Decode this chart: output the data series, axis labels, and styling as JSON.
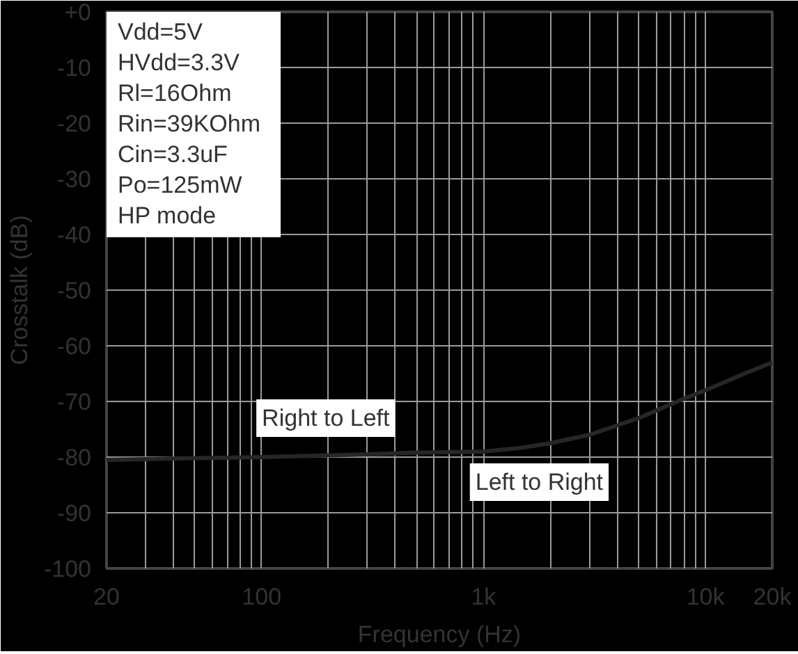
{
  "chart_data": {
    "type": "line",
    "xlabel": "Frequency (Hz)",
    "ylabel": "Crosstalk (dB)",
    "log": "x",
    "x": [
      20,
      50,
      100,
      200,
      300,
      500,
      1000,
      1500,
      2000,
      3000,
      5000,
      8000,
      10000,
      15000,
      20000
    ],
    "series": [
      {
        "color": "#262626",
        "values": [
          -80.5,
          -80.2,
          -80,
          -79.7,
          -79.5,
          -79.2,
          -79,
          -78.3,
          -77.5,
          -76,
          -73,
          -69.5,
          -68,
          -65,
          -63
        ]
      }
    ],
    "xlim": [
      20,
      20000
    ],
    "ylim": [
      -100,
      0
    ],
    "xticks": [
      {
        "value": 20,
        "label": "20"
      },
      {
        "value": 30,
        "label": null
      },
      {
        "value": 40,
        "label": null
      },
      {
        "value": 50,
        "label": null
      },
      {
        "value": 60,
        "label": null
      },
      {
        "value": 70,
        "label": null
      },
      {
        "value": 80,
        "label": null
      },
      {
        "value": 90,
        "label": null
      },
      {
        "value": 100,
        "label": "100"
      },
      {
        "value": 200,
        "label": null
      },
      {
        "value": 300,
        "label": null
      },
      {
        "value": 400,
        "label": null
      },
      {
        "value": 500,
        "label": null
      },
      {
        "value": 600,
        "label": null
      },
      {
        "value": 700,
        "label": null
      },
      {
        "value": 800,
        "label": null
      },
      {
        "value": 900,
        "label": null
      },
      {
        "value": 1000,
        "label": "1k"
      },
      {
        "value": 2000,
        "label": null
      },
      {
        "value": 3000,
        "label": null
      },
      {
        "value": 4000,
        "label": null
      },
      {
        "value": 5000,
        "label": null
      },
      {
        "value": 6000,
        "label": null
      },
      {
        "value": 7000,
        "label": null
      },
      {
        "value": 8000,
        "label": null
      },
      {
        "value": 9000,
        "label": null
      },
      {
        "value": 10000,
        "label": "10k"
      },
      {
        "value": 20000,
        "label": "20k"
      }
    ],
    "yticks": [
      {
        "value": 0,
        "label": "+0"
      },
      -10,
      -20,
      -30,
      -40,
      -50,
      -60,
      -70,
      -80,
      -90,
      -100
    ],
    "grid": true,
    "line_style": "solid",
    "annotations": [
      "Vdd=5V",
      "HVdd=3.3V",
      "Rl=16Ohm",
      "Rin=39KOhm",
      "Cin=3.3uF",
      "Po=125mW",
      "HP mode",
      {
        "text": "Right to Left",
        "x": 300,
        "y": -79.5
      },
      {
        "text": "Left to Right",
        "x": 1000,
        "y": -79
      }
    ]
  }
}
